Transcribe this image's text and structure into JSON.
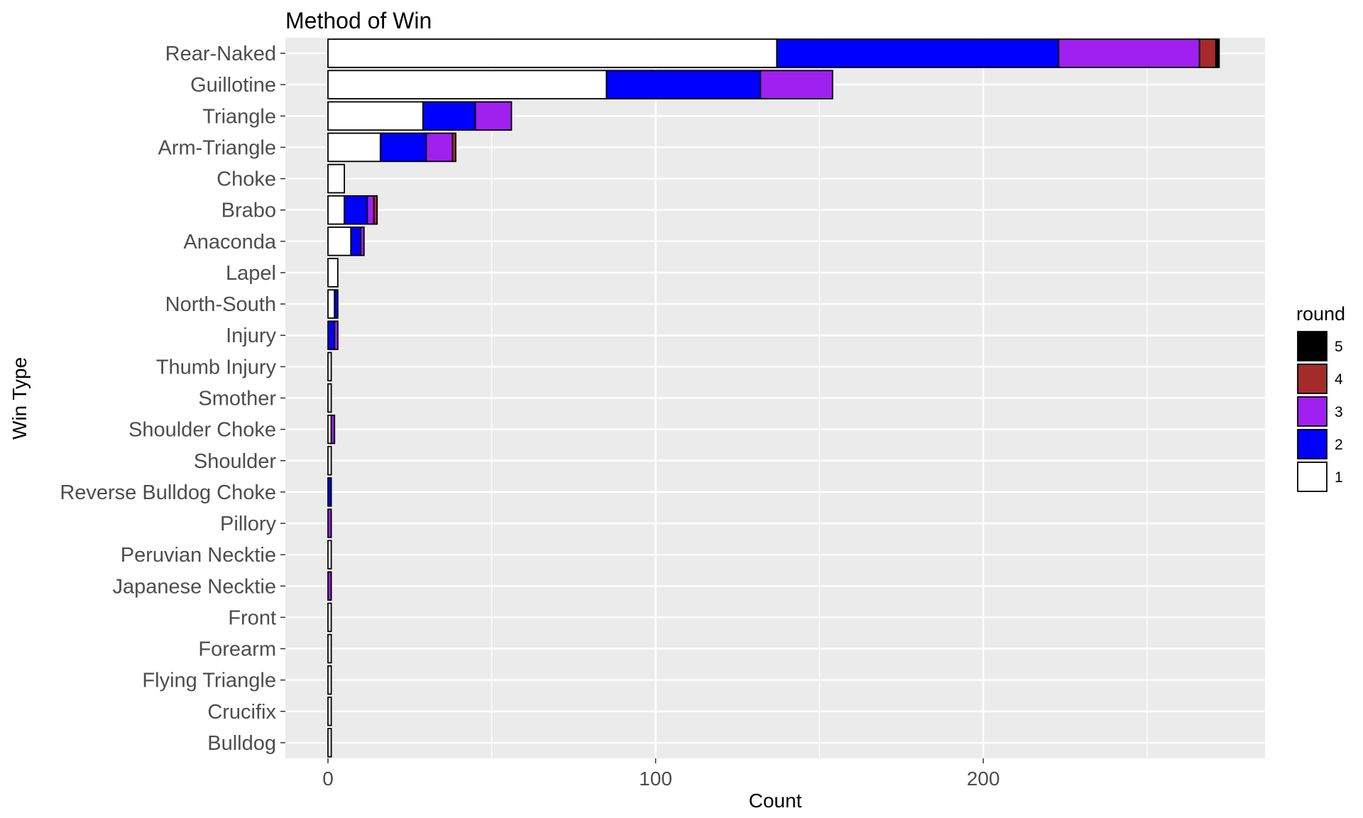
{
  "chart_data": {
    "type": "bar",
    "orientation": "horizontal",
    "stacked": true,
    "title": "Method of Win",
    "xlabel": "Count",
    "ylabel": "Win Type",
    "xlim": [
      -13,
      286
    ],
    "xticks": [
      0,
      100,
      200
    ],
    "xtick_labels": [
      "0",
      "100",
      "200"
    ],
    "grid": true,
    "legend_position": "right",
    "legend_title": "round",
    "categories": [
      "Rear-Naked",
      "Guillotine",
      "Triangle",
      "Arm-Triangle",
      "Choke",
      "Brabo",
      "Anaconda",
      "Lapel",
      "North-South",
      "Injury",
      "Thumb Injury",
      "Smother",
      "Shoulder Choke",
      "Shoulder",
      "Reverse Bulldog Choke",
      "Pillory",
      "Peruvian Necktie",
      "Japanese Necktie",
      "Front",
      "Forearm",
      "Flying Triangle",
      "Crucifix",
      "Bulldog"
    ],
    "series": [
      {
        "name": "1",
        "color": "#ffffff",
        "values": [
          137,
          85,
          29,
          16,
          5,
          5,
          7,
          3,
          2,
          0,
          1,
          1,
          1,
          1,
          0,
          0,
          1,
          0,
          1,
          1,
          1,
          1,
          1
        ]
      },
      {
        "name": "2",
        "color": "#0000ff",
        "values": [
          86,
          47,
          16,
          14,
          0,
          7,
          3,
          0,
          1,
          2,
          0,
          0,
          0,
          0,
          1,
          0,
          0,
          0,
          0,
          0,
          0,
          0,
          0
        ]
      },
      {
        "name": "3",
        "color": "#a020f0",
        "values": [
          43,
          22,
          11,
          8,
          0,
          2,
          1,
          0,
          0,
          1,
          0,
          0,
          1,
          0,
          0,
          1,
          0,
          1,
          0,
          0,
          0,
          0,
          0
        ]
      },
      {
        "name": "4",
        "color": "#a52a2a",
        "values": [
          5,
          0,
          0,
          1,
          0,
          1,
          0,
          0,
          0,
          0,
          0,
          0,
          0,
          0,
          0,
          0,
          0,
          0,
          0,
          0,
          0,
          0,
          0
        ]
      },
      {
        "name": "5",
        "color": "#000000",
        "values": [
          1,
          0,
          0,
          0,
          0,
          0,
          0,
          0,
          0,
          0,
          0,
          0,
          0,
          0,
          0,
          0,
          0,
          0,
          0,
          0,
          0,
          0,
          0
        ]
      }
    ]
  }
}
